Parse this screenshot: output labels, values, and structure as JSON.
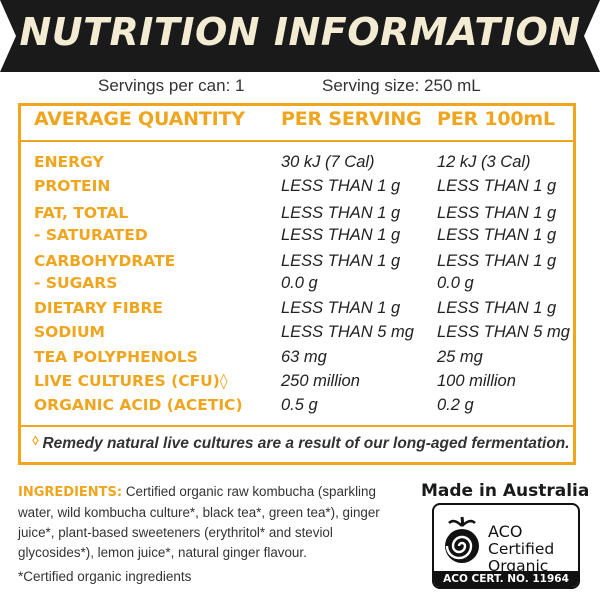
{
  "banner": {
    "title": "NUTRITION INFORMATION"
  },
  "servings": {
    "per_can": "Servings per can: 1",
    "size": "Serving size: 250 mL"
  },
  "table": {
    "headers": [
      "AVERAGE QUANTITY",
      "PER SERVING",
      "PER 100mL"
    ],
    "rows": [
      {
        "name": "ENERGY",
        "per_serving": "30 kJ (7 Cal)",
        "per_100ml": "12 kJ (3 Cal)"
      },
      {
        "name": "PROTEIN",
        "per_serving": "LESS THAN 1 g",
        "per_100ml": "LESS THAN 1 g"
      },
      {
        "name": "FAT, TOTAL",
        "per_serving": "LESS THAN 1 g",
        "per_100ml": "LESS THAN 1 g"
      },
      {
        "name": "- SATURATED",
        "per_serving": "LESS THAN 1 g",
        "per_100ml": "LESS THAN 1 g"
      },
      {
        "name": "CARBOHYDRATE",
        "per_serving": "LESS THAN 1 g",
        "per_100ml": "LESS THAN 1 g"
      },
      {
        "name": "- SUGARS",
        "per_serving": "0.0 g",
        "per_100ml": "0.0 g"
      },
      {
        "name": "DIETARY FIBRE",
        "per_serving": "LESS THAN 1 g",
        "per_100ml": "LESS THAN 1 g"
      },
      {
        "name": "SODIUM",
        "per_serving": "LESS THAN 5 mg",
        "per_100ml": "LESS THAN 5 mg"
      },
      {
        "name": "TEA POLYPHENOLS",
        "per_serving": "63 mg",
        "per_100ml": "25 mg"
      },
      {
        "name": "LIVE CULTURES (CFU)◊",
        "per_serving": "250 million",
        "per_100ml": "100 million"
      },
      {
        "name": "ORGANIC ACID (ACETIC)",
        "per_serving": "0.5 g",
        "per_100ml": "0.2 g"
      }
    ],
    "footnote_mark": "◊",
    "footnote": "Remedy natural live cultures are a result of our long-aged fermentation."
  },
  "ingredients": {
    "label": "INGREDIENTS:",
    "text": "Certified organic raw kombucha (sparkling water, wild kombucha culture*, black tea*, green tea*), ginger juice*, plant-based sweeteners (erythritol* and steviol glycosides*), lemon juice*, natural ginger flavour."
  },
  "certified_note": "*Certified organic ingredients",
  "made_in": "Made in Australia",
  "aco": {
    "line1": "ACO",
    "line2": "Certified",
    "line3": "Organic",
    "cert_no": "ACO CERT. NO. 11964"
  },
  "colors": {
    "accent": "#f0a51e",
    "banner_bg": "#1a1a1a",
    "banner_text": "#f4ecd2"
  }
}
